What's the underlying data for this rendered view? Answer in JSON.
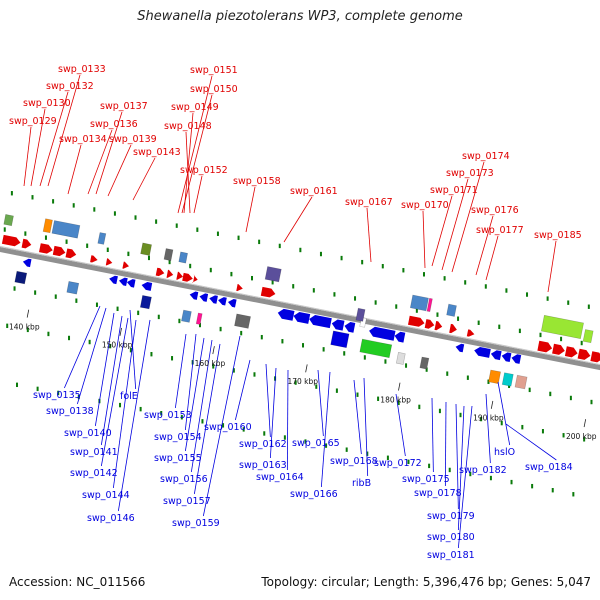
{
  "title": "Shewanella piezotolerans WP3, complete genome",
  "footer": {
    "accession": "Accession: NC_011566",
    "topology": "Topology: circular; Length: 5,396,476 bp; Genes: 5,047"
  },
  "colors": {
    "forward": "#e00000",
    "reverse": "#0000e0",
    "backbone": "#909090",
    "dots": "#0a7a0a"
  },
  "scale": {
    "start_kbp": 140,
    "end_kbp": 202,
    "unit": "kbp"
  },
  "tick_marks": [
    {
      "kbp": 140,
      "label": "140 kbp"
    },
    {
      "kbp": 150,
      "label": "150 kbp"
    },
    {
      "kbp": 160,
      "label": "160 kbp"
    },
    {
      "kbp": 170,
      "label": "170 kbp"
    },
    {
      "kbp": 180,
      "label": "180 kbp"
    },
    {
      "kbp": 190,
      "label": "190 kbp"
    },
    {
      "kbp": 200,
      "label": "200 kbp"
    }
  ],
  "top_labels": [
    "swp_0133",
    "swp_0132",
    "swp_0130",
    "swp_0129",
    "swp_0137",
    "swp_0136",
    "swp_0134",
    "swp_0139",
    "swp_0143",
    "swp_0151",
    "swp_0150",
    "swp_0149",
    "swp_0148",
    "swp_0152",
    "swp_0158",
    "swp_0161",
    "swp_0167",
    "swp_0170",
    "swp_0171",
    "swp_0173",
    "swp_0174",
    "swp_0176",
    "swp_0177",
    "swp_0185"
  ],
  "bottom_labels": [
    "swp_0135",
    "swp_0138",
    "folE",
    "swp_0140",
    "swp_0141",
    "swp_0142",
    "swp_0144",
    "swp_0146",
    "swp_0153",
    "swp_0154",
    "swp_0155",
    "swp_0156",
    "swp_0157",
    "swp_0159",
    "swp_0160",
    "swp_0162",
    "swp_0163",
    "swp_0164",
    "swp_0165",
    "swp_0166",
    "swp_0168",
    "ribB",
    "swp_0172",
    "swp_0175",
    "swp_0178",
    "swp_0179",
    "swp_0180",
    "swp_0181",
    "swp_0182",
    "hslO",
    "swp_0184"
  ]
}
